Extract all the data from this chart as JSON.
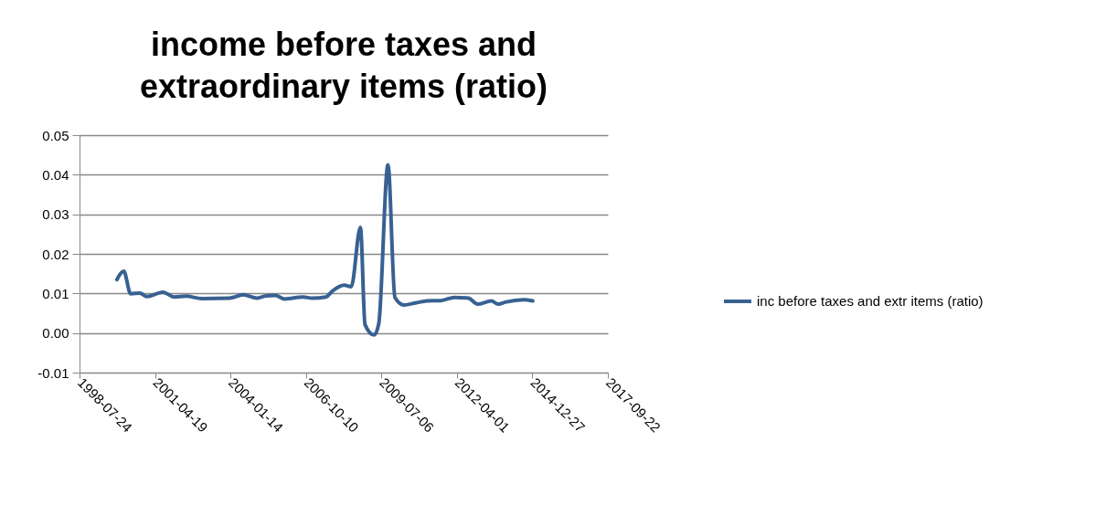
{
  "chart_data": {
    "type": "line",
    "title": "income before taxes and extraordinary items (ratio)",
    "x": [
      "1999-12",
      "2000-03",
      "2000-06",
      "2000-10",
      "2001-01",
      "2001-08",
      "2002-01",
      "2002-06",
      "2003-01",
      "2004-01",
      "2004-07",
      "2005-01",
      "2005-05",
      "2005-09",
      "2006-01",
      "2006-09",
      "2007-01",
      "2007-07",
      "2007-10",
      "2008-03",
      "2008-06",
      "2008-10",
      "2008-12",
      "2009-04",
      "2009-06",
      "2009-10",
      "2010-01",
      "2010-05",
      "2010-10",
      "2011-03",
      "2011-09",
      "2012-03",
      "2012-09",
      "2013-01",
      "2013-07",
      "2013-10",
      "2014-01",
      "2014-09",
      "2015-01"
    ],
    "series": [
      {
        "name": "inc before taxes and extr items (ratio)",
        "color": "#386192",
        "values": [
          0.0135,
          0.0156,
          0.0099,
          0.0101,
          0.0092,
          0.0103,
          0.0091,
          0.0093,
          0.0087,
          0.0088,
          0.0097,
          0.0088,
          0.0094,
          0.0095,
          0.0086,
          0.0091,
          0.0088,
          0.0091,
          0.0107,
          0.0121,
          0.0117,
          0.0267,
          0.0021,
          -0.0005,
          0.0024,
          0.0425,
          0.009,
          0.0071,
          0.0076,
          0.0081,
          0.0082,
          0.009,
          0.0088,
          0.0073,
          0.0081,
          0.0073,
          0.0078,
          0.0084,
          0.0081
        ]
      }
    ],
    "xlim": [
      "1998-07-24",
      "2017-09-22"
    ],
    "xticks": [
      {
        "value": "1998-07-24",
        "label": "1998-07-24"
      },
      {
        "value": "2001-04-19",
        "label": "2001-04-19"
      },
      {
        "value": "2004-01-14",
        "label": "2004-01-14"
      },
      {
        "value": "2006-10-10",
        "label": "2006-10-10"
      },
      {
        "value": "2009-07-06",
        "label": "2009-07-06"
      },
      {
        "value": "2012-04-01",
        "label": "2012-04-01"
      },
      {
        "value": "2014-12-27",
        "label": "2014-12-27"
      },
      {
        "value": "2017-09-22",
        "label": "2017-09-22"
      }
    ],
    "ylim": [
      -0.01,
      0.05
    ],
    "yticks": [
      -0.01,
      {
        "value": 0,
        "label": "0.00"
      },
      0.01,
      0.02,
      0.03,
      0.04,
      0.05
    ],
    "grid": "y",
    "legend": "right",
    "line_style": "solid",
    "marker": "none"
  }
}
